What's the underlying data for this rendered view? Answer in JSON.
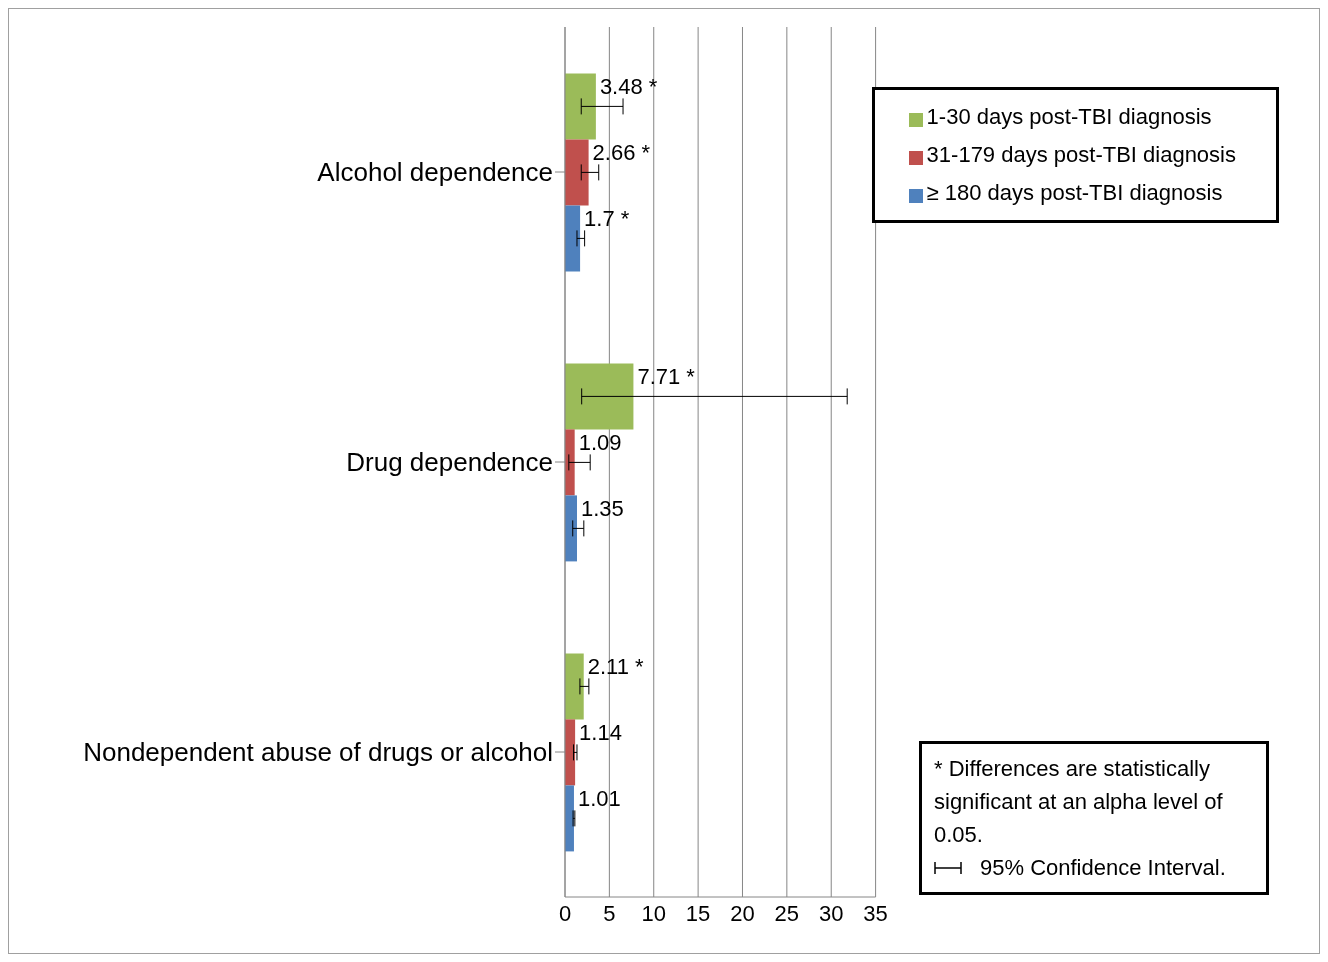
{
  "chart_data": {
    "type": "bar",
    "orientation": "horizontal",
    "categories": [
      "Alcohol dependence",
      "Drug dependence",
      "Nondependent abuse of drugs or alcohol"
    ],
    "series": [
      {
        "name": "1-30 days post-TBI diagnosis",
        "color": "#9bbb59",
        "values": [
          3.48,
          7.71,
          2.11
        ],
        "errors": [
          [
            1.83,
            6.54
          ],
          [
            1.88,
            31.8
          ],
          [
            1.68,
            2.69
          ]
        ],
        "value_labels": [
          "3.48 *",
          "7.71 *",
          "2.11 *"
        ]
      },
      {
        "name": "31-179 days post-TBI diagnosis",
        "color": "#c0504d",
        "values": [
          2.66,
          1.09,
          1.14
        ],
        "errors": [
          [
            1.83,
            3.8
          ],
          [
            0.43,
            2.84
          ],
          [
            0.96,
            1.35
          ]
        ],
        "value_labels": [
          "2.66 *",
          "1.09",
          "1.14"
        ]
      },
      {
        "name": "≥ 180 days post-TBI diagnosis",
        "color": "#4f81bd",
        "values": [
          1.7,
          1.35,
          1.01
        ],
        "errors": [
          [
            1.35,
            2.21
          ],
          [
            0.87,
            2.12
          ],
          [
            0.91,
            1.11
          ]
        ],
        "value_labels": [
          "1.7 *",
          "1.35",
          "1.01"
        ]
      }
    ],
    "xlim": [
      0,
      35
    ],
    "xticks": [
      0,
      5,
      10,
      15,
      20,
      25,
      30,
      35
    ],
    "grid": "x",
    "legend": "top right",
    "annotations": [
      "* Differences are statistically significant at an alpha level of 0.05.",
      "95% Confidence Interval."
    ]
  }
}
